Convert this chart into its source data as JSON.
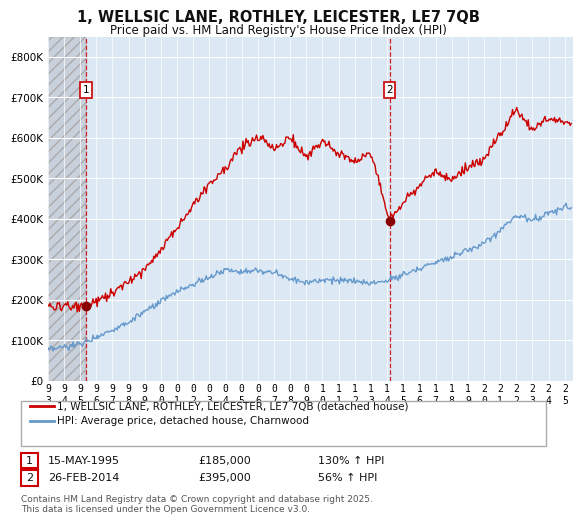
{
  "title": "1, WELLSIC LANE, ROTHLEY, LEICESTER, LE7 7QB",
  "subtitle": "Price paid vs. HM Land Registry's House Price Index (HPI)",
  "title_fontsize": 10.5,
  "subtitle_fontsize": 8.5,
  "background_color": "#ffffff",
  "plot_bg_color": "#dce9f5",
  "hatch_bg_color": "#dce0e8",
  "red_line_color": "#cc0000",
  "blue_line_color": "#6699cc",
  "dashed_line_color": "#cc0000",
  "ylim": [
    0,
    850000
  ],
  "yticks": [
    0,
    100000,
    200000,
    300000,
    400000,
    500000,
    600000,
    700000,
    800000
  ],
  "ytick_labels": [
    "£0",
    "£100K",
    "£200K",
    "£300K",
    "£400K",
    "£500K",
    "£600K",
    "£700K",
    "£800K"
  ],
  "xlim_start": 1993.0,
  "xlim_end": 2025.5,
  "sale1_x": 1995.37,
  "sale1_y": 185000,
  "sale2_x": 2014.15,
  "sale2_y": 395000,
  "legend_red": "1, WELLSIC LANE, ROTHLEY, LEICESTER, LE7 7QB (detached house)",
  "legend_blue": "HPI: Average price, detached house, Charnwood",
  "sale1_label": "15-MAY-1995",
  "sale1_price": "£185,000",
  "sale1_hpi": "130% ↑ HPI",
  "sale2_label": "26-FEB-2014",
  "sale2_price": "£395,000",
  "sale2_hpi": "56% ↑ HPI",
  "footer": "Contains HM Land Registry data © Crown copyright and database right 2025.\nThis data is licensed under the Open Government Licence v3.0.",
  "xtick_years": [
    1993,
    1994,
    1995,
    1996,
    1997,
    1998,
    1999,
    2000,
    2001,
    2002,
    2003,
    2004,
    2005,
    2006,
    2007,
    2008,
    2009,
    2010,
    2011,
    2012,
    2013,
    2014,
    2015,
    2016,
    2017,
    2018,
    2019,
    2020,
    2021,
    2022,
    2023,
    2024,
    2025
  ]
}
